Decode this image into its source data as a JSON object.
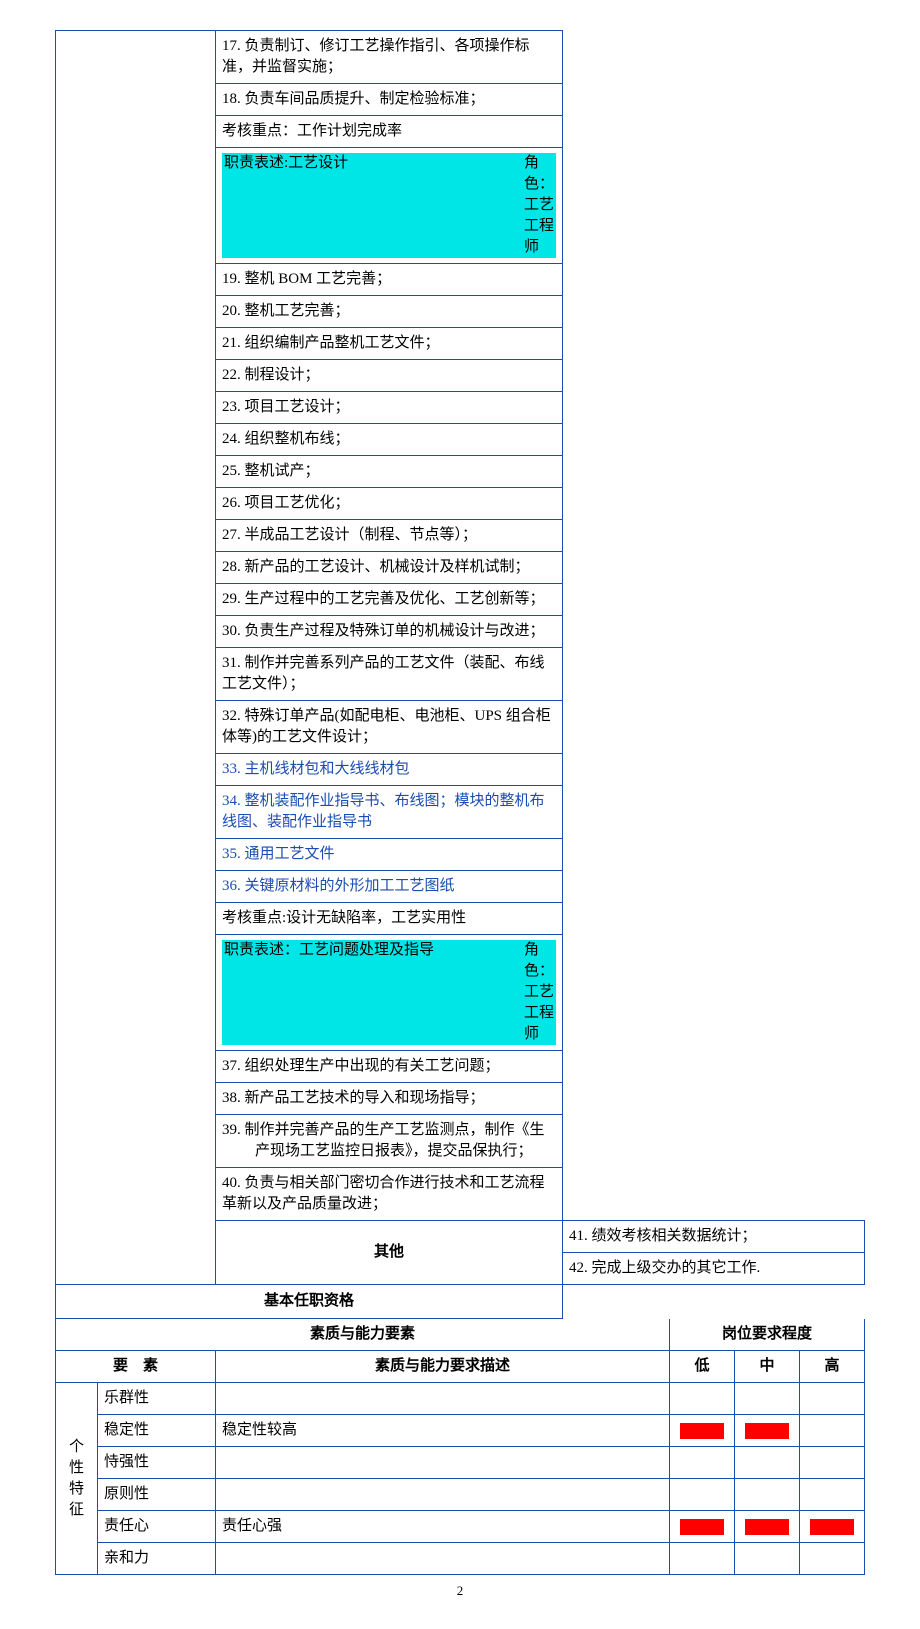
{
  "colors": {
    "border": "#1a4db3",
    "highlight": "#00e5e5",
    "marker": "#ff0000",
    "link": "#1a4db3"
  },
  "duties": {
    "items17_18": [
      "17. 负责制订、修订工艺操作指引、各项操作标准，并监督实施；",
      "18. 负责车间品质提升、制定检验标准；"
    ],
    "check1": "考核重点：工作计划完成率",
    "role1_label": "职责表述:工艺设计",
    "role1_role": "角色：工艺工程师",
    "items19_32": [
      "19. 整机 BOM 工艺完善；",
      "20. 整机工艺完善；",
      "21. 组织编制产品整机工艺文件；",
      "22. 制程设计；",
      "23. 项目工艺设计；",
      "24. 组织整机布线；",
      "25. 整机试产；",
      "26. 项目工艺优化；",
      "27. 半成品工艺设计（制程、节点等）；",
      "28. 新产品的工艺设计、机械设计及样机试制；",
      "29. 生产过程中的工艺完善及优化、工艺创新等；",
      "30. 负责生产过程及特殊订单的机械设计与改进；",
      "31. 制作并完善系列产品的工艺文件（装配、布线工艺文件）；",
      "32. 特殊订单产品(如配电柜、电池柜、UPS 组合柜体等)的工艺文件设计；"
    ],
    "blue_items": [
      "33. 主机线材包和大线线材包",
      "34. 整机装配作业指导书、布线图；模块的整机布线图、装配作业指导书",
      "35. 通用工艺文件",
      "36. 关键原材料的外形加工工艺图纸"
    ],
    "check2": "考核重点:设计无缺陷率，工艺实用性",
    "role2_label": "职责表述：工艺问题处理及指导",
    "role2_role": "角色：工艺工程师",
    "items37_40": [
      "37. 组织处理生产中出现的有关工艺问题；",
      "38. 新产品工艺技术的导入和现场指导；",
      "39. 制作并完善产品的生产工艺监测点，制作《生产现场工艺监控日报表》，提交品保执行；",
      "40. 负责与相关部门密切合作进行技术和工艺流程革新以及产品质量改进；"
    ],
    "other_label": "其他",
    "items41_42": [
      "41. 绩效考核相关数据统计；",
      "42. 完成上级交办的其它工作."
    ]
  },
  "qualification": {
    "title": "基本任职资格",
    "col_quality": "素质与能力要素",
    "col_level": "岗位要求程度",
    "col_element": "要　素",
    "col_desc": "素质与能力要求描述",
    "lvl_low": "低",
    "lvl_mid": "中",
    "lvl_high": "高",
    "category": "个性特征",
    "rows": [
      {
        "trait": "乐群性",
        "desc": "",
        "low": false,
        "mid": false,
        "high": false
      },
      {
        "trait": "稳定性",
        "desc": "稳定性较高",
        "low": true,
        "mid": true,
        "high": false
      },
      {
        "trait": "恃强性",
        "desc": "",
        "low": false,
        "mid": false,
        "high": false
      },
      {
        "trait": "原则性",
        "desc": "",
        "low": false,
        "mid": false,
        "high": false
      },
      {
        "trait": "责任心",
        "desc": "责任心强",
        "low": true,
        "mid": true,
        "high": true
      },
      {
        "trait": "亲和力",
        "desc": "",
        "low": false,
        "mid": false,
        "high": false
      }
    ]
  },
  "page_number": "2"
}
